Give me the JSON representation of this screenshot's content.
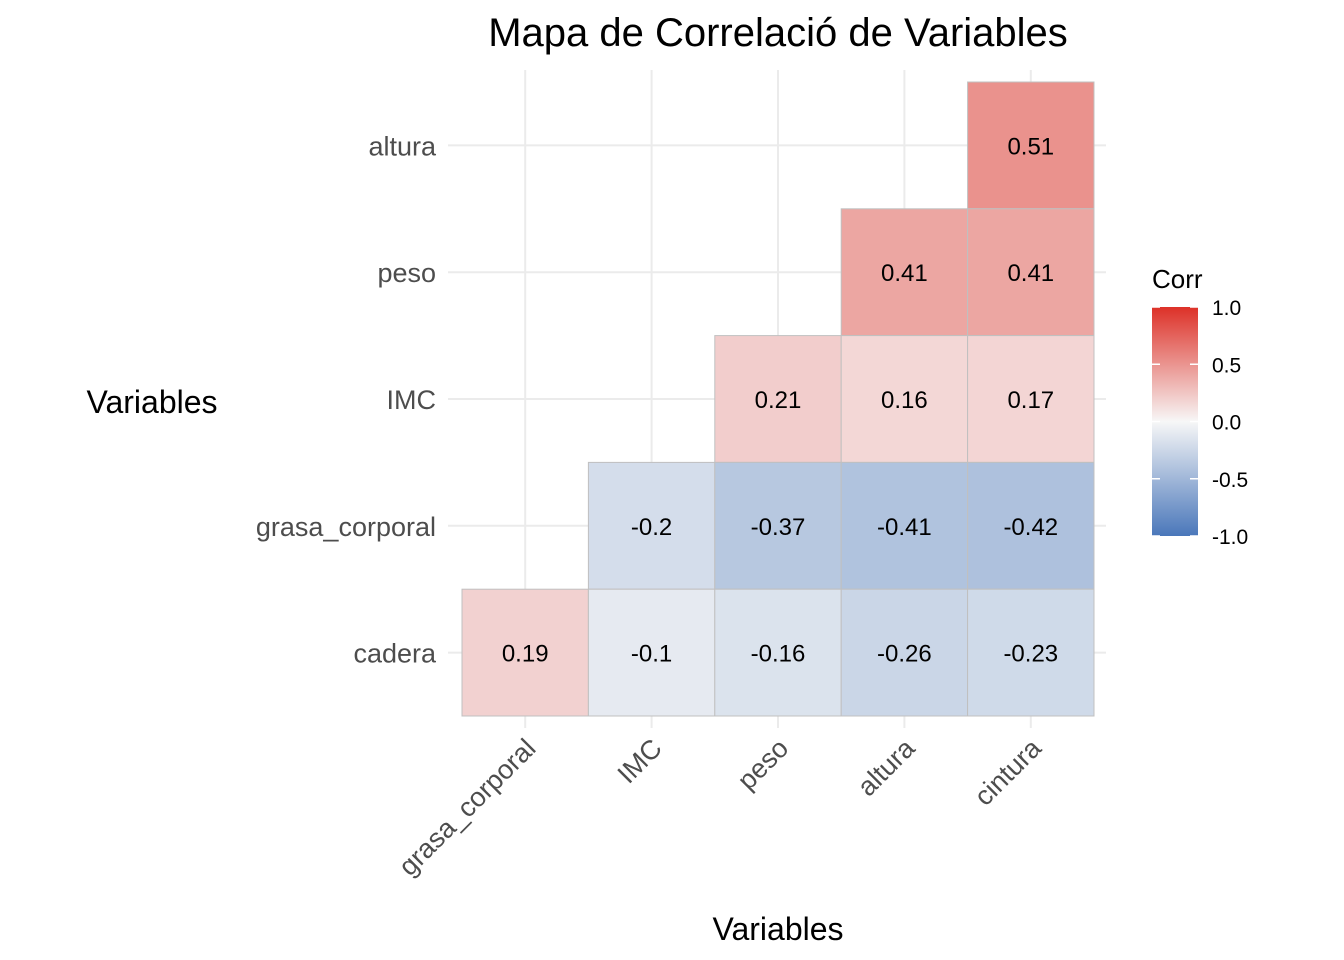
{
  "chart_data": {
    "type": "heatmap",
    "title": "Mapa de Correlació de Variables",
    "xlabel": "Variables",
    "ylabel": "Variables",
    "x_categories": [
      "grasa_corporal",
      "IMC",
      "peso",
      "altura",
      "cintura"
    ],
    "y_categories": [
      "altura",
      "peso",
      "IMC",
      "grasa_corporal",
      "cadera"
    ],
    "cells": [
      {
        "x": "cintura",
        "y": "altura",
        "value": 0.51,
        "label": "0.51"
      },
      {
        "x": "altura",
        "y": "peso",
        "value": 0.41,
        "label": "0.41"
      },
      {
        "x": "cintura",
        "y": "peso",
        "value": 0.41,
        "label": "0.41"
      },
      {
        "x": "peso",
        "y": "IMC",
        "value": 0.21,
        "label": "0.21"
      },
      {
        "x": "altura",
        "y": "IMC",
        "value": 0.16,
        "label": "0.16"
      },
      {
        "x": "cintura",
        "y": "IMC",
        "value": 0.17,
        "label": "0.17"
      },
      {
        "x": "IMC",
        "y": "grasa_corporal",
        "value": -0.2,
        "label": "-0.2"
      },
      {
        "x": "peso",
        "y": "grasa_corporal",
        "value": -0.37,
        "label": "-0.37"
      },
      {
        "x": "altura",
        "y": "grasa_corporal",
        "value": -0.41,
        "label": "-0.41"
      },
      {
        "x": "cintura",
        "y": "grasa_corporal",
        "value": -0.42,
        "label": "-0.42"
      },
      {
        "x": "grasa_corporal",
        "y": "cadera",
        "value": 0.19,
        "label": "0.19"
      },
      {
        "x": "IMC",
        "y": "cadera",
        "value": -0.1,
        "label": "-0.1"
      },
      {
        "x": "peso",
        "y": "cadera",
        "value": -0.16,
        "label": "-0.16"
      },
      {
        "x": "altura",
        "y": "cadera",
        "value": -0.26,
        "label": "-0.26"
      },
      {
        "x": "cintura",
        "y": "cadera",
        "value": -0.23,
        "label": "-0.23"
      }
    ],
    "legend": {
      "title": "Corr",
      "range": [
        -1,
        1
      ],
      "ticks": [
        1.0,
        0.5,
        0.0,
        -0.5,
        -1.0
      ],
      "tick_labels": [
        "1.0",
        "0.5",
        "0.0",
        "-0.5",
        "-1.0"
      ],
      "colors": {
        "low": "#4a77ba",
        "mid": "#f7f7f7",
        "high": "#dd3128"
      },
      "placement": "right"
    },
    "grid": true
  }
}
